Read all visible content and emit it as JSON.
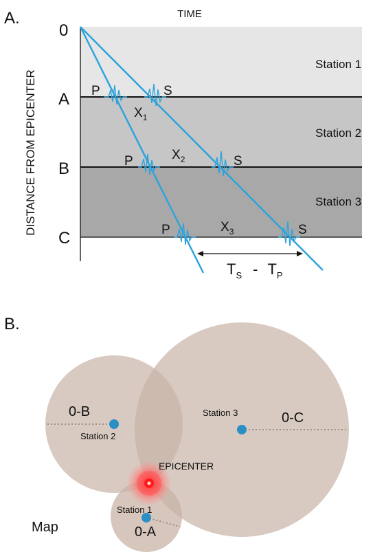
{
  "panel_a": {
    "label": "A.",
    "top_axis_label": "TIME",
    "y_axis_label": "DISTANCE FROM EPICENTER",
    "distance_marks": [
      "0",
      "A",
      "B",
      "C"
    ],
    "stations": [
      "Station 1",
      "Station 2",
      "Station 3"
    ],
    "p_label": "P",
    "s_label": "S",
    "x_labels": [
      {
        "main": "X",
        "sub": "1"
      },
      {
        "main": "X",
        "sub": "2"
      },
      {
        "main": "X",
        "sub": "3"
      }
    ],
    "tstp": {
      "ts_main": "T",
      "ts_sub": "S",
      "minus": "-",
      "tp_main": "T",
      "tp_sub": "P"
    },
    "colors": {
      "band1": "#e6e6e6",
      "band2": "#c6c6c6",
      "band3": "#a8a8a8",
      "wave": "#2ea3db",
      "line": "#111111"
    }
  },
  "panel_b": {
    "label": "B.",
    "map_label": "Map",
    "epicenter_label": "EPICENTER",
    "stations": [
      "Station 1",
      "Station 2",
      "Station 3"
    ],
    "radius_labels": [
      "0-A",
      "0-B",
      "0-C"
    ],
    "colors": {
      "circle": "#c8b3a6",
      "station": "#2b8ec4",
      "epicenter": "#ff2a2a"
    }
  }
}
